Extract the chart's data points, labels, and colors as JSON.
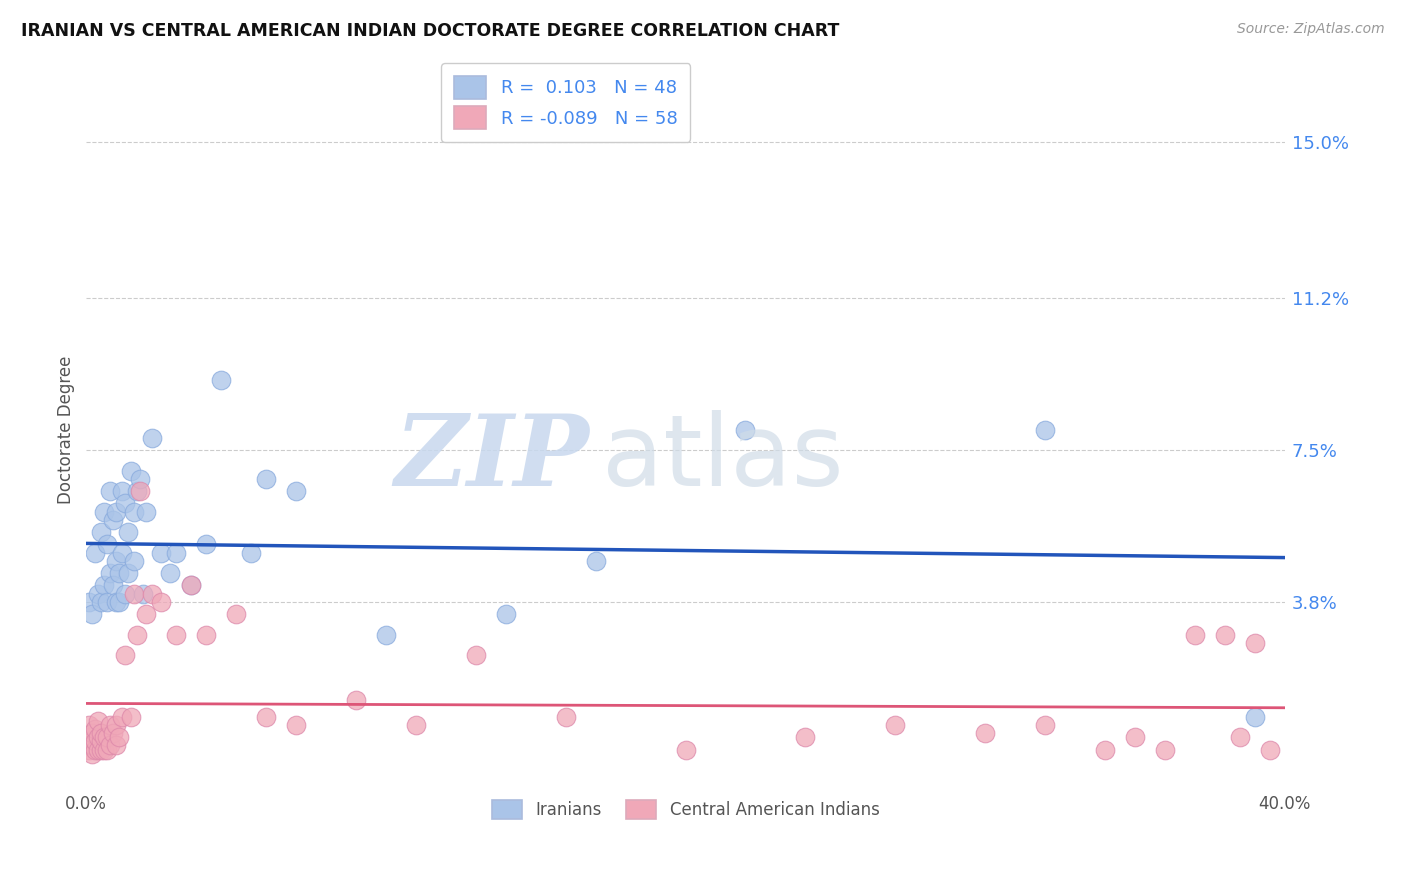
{
  "title": "IRANIAN VS CENTRAL AMERICAN INDIAN DOCTORATE DEGREE CORRELATION CHART",
  "source": "Source: ZipAtlas.com",
  "ylabel": "Doctorate Degree",
  "ytick_labels": [
    "15.0%",
    "11.2%",
    "7.5%",
    "3.8%"
  ],
  "ytick_values": [
    0.15,
    0.112,
    0.075,
    0.038
  ],
  "xlim": [
    0.0,
    0.4
  ],
  "ylim": [
    -0.008,
    0.168
  ],
  "iranian_color": "#aac4e8",
  "central_color": "#f0a8b8",
  "iranian_line_color": "#2255bb",
  "central_line_color": "#dd5577",
  "legend_label1": "Iranians",
  "legend_label2": "Central American Indians",
  "watermark_zip": "ZIP",
  "watermark_atlas": "atlas",
  "iranians_x": [
    0.001,
    0.002,
    0.003,
    0.004,
    0.005,
    0.005,
    0.006,
    0.006,
    0.007,
    0.007,
    0.008,
    0.008,
    0.009,
    0.009,
    0.01,
    0.01,
    0.01,
    0.011,
    0.011,
    0.012,
    0.012,
    0.013,
    0.013,
    0.014,
    0.014,
    0.015,
    0.016,
    0.016,
    0.017,
    0.018,
    0.019,
    0.02,
    0.022,
    0.025,
    0.028,
    0.03,
    0.035,
    0.04,
    0.045,
    0.055,
    0.06,
    0.07,
    0.1,
    0.14,
    0.17,
    0.22,
    0.32,
    0.39
  ],
  "iranians_y": [
    0.038,
    0.035,
    0.05,
    0.04,
    0.038,
    0.055,
    0.042,
    0.06,
    0.038,
    0.052,
    0.045,
    0.065,
    0.042,
    0.058,
    0.038,
    0.048,
    0.06,
    0.045,
    0.038,
    0.05,
    0.065,
    0.04,
    0.062,
    0.055,
    0.045,
    0.07,
    0.048,
    0.06,
    0.065,
    0.068,
    0.04,
    0.06,
    0.078,
    0.05,
    0.045,
    0.05,
    0.042,
    0.052,
    0.092,
    0.05,
    0.068,
    0.065,
    0.03,
    0.035,
    0.048,
    0.08,
    0.08,
    0.01
  ],
  "central_x": [
    0.001,
    0.001,
    0.001,
    0.001,
    0.002,
    0.002,
    0.002,
    0.003,
    0.003,
    0.003,
    0.004,
    0.004,
    0.004,
    0.005,
    0.005,
    0.005,
    0.006,
    0.006,
    0.007,
    0.007,
    0.008,
    0.008,
    0.009,
    0.01,
    0.01,
    0.011,
    0.012,
    0.013,
    0.015,
    0.016,
    0.017,
    0.018,
    0.02,
    0.022,
    0.025,
    0.03,
    0.035,
    0.04,
    0.05,
    0.06,
    0.07,
    0.09,
    0.11,
    0.13,
    0.16,
    0.2,
    0.24,
    0.27,
    0.3,
    0.32,
    0.34,
    0.35,
    0.36,
    0.37,
    0.38,
    0.385,
    0.39,
    0.395
  ],
  "central_y": [
    0.002,
    0.003,
    0.005,
    0.008,
    0.001,
    0.003,
    0.006,
    0.002,
    0.004,
    0.007,
    0.002,
    0.005,
    0.009,
    0.002,
    0.004,
    0.006,
    0.002,
    0.005,
    0.002,
    0.005,
    0.003,
    0.008,
    0.006,
    0.003,
    0.008,
    0.005,
    0.01,
    0.025,
    0.01,
    0.04,
    0.03,
    0.065,
    0.035,
    0.04,
    0.038,
    0.03,
    0.042,
    0.03,
    0.035,
    0.01,
    0.008,
    0.014,
    0.008,
    0.025,
    0.01,
    0.002,
    0.005,
    0.008,
    0.006,
    0.008,
    0.002,
    0.005,
    0.002,
    0.03,
    0.03,
    0.005,
    0.028,
    0.002
  ]
}
